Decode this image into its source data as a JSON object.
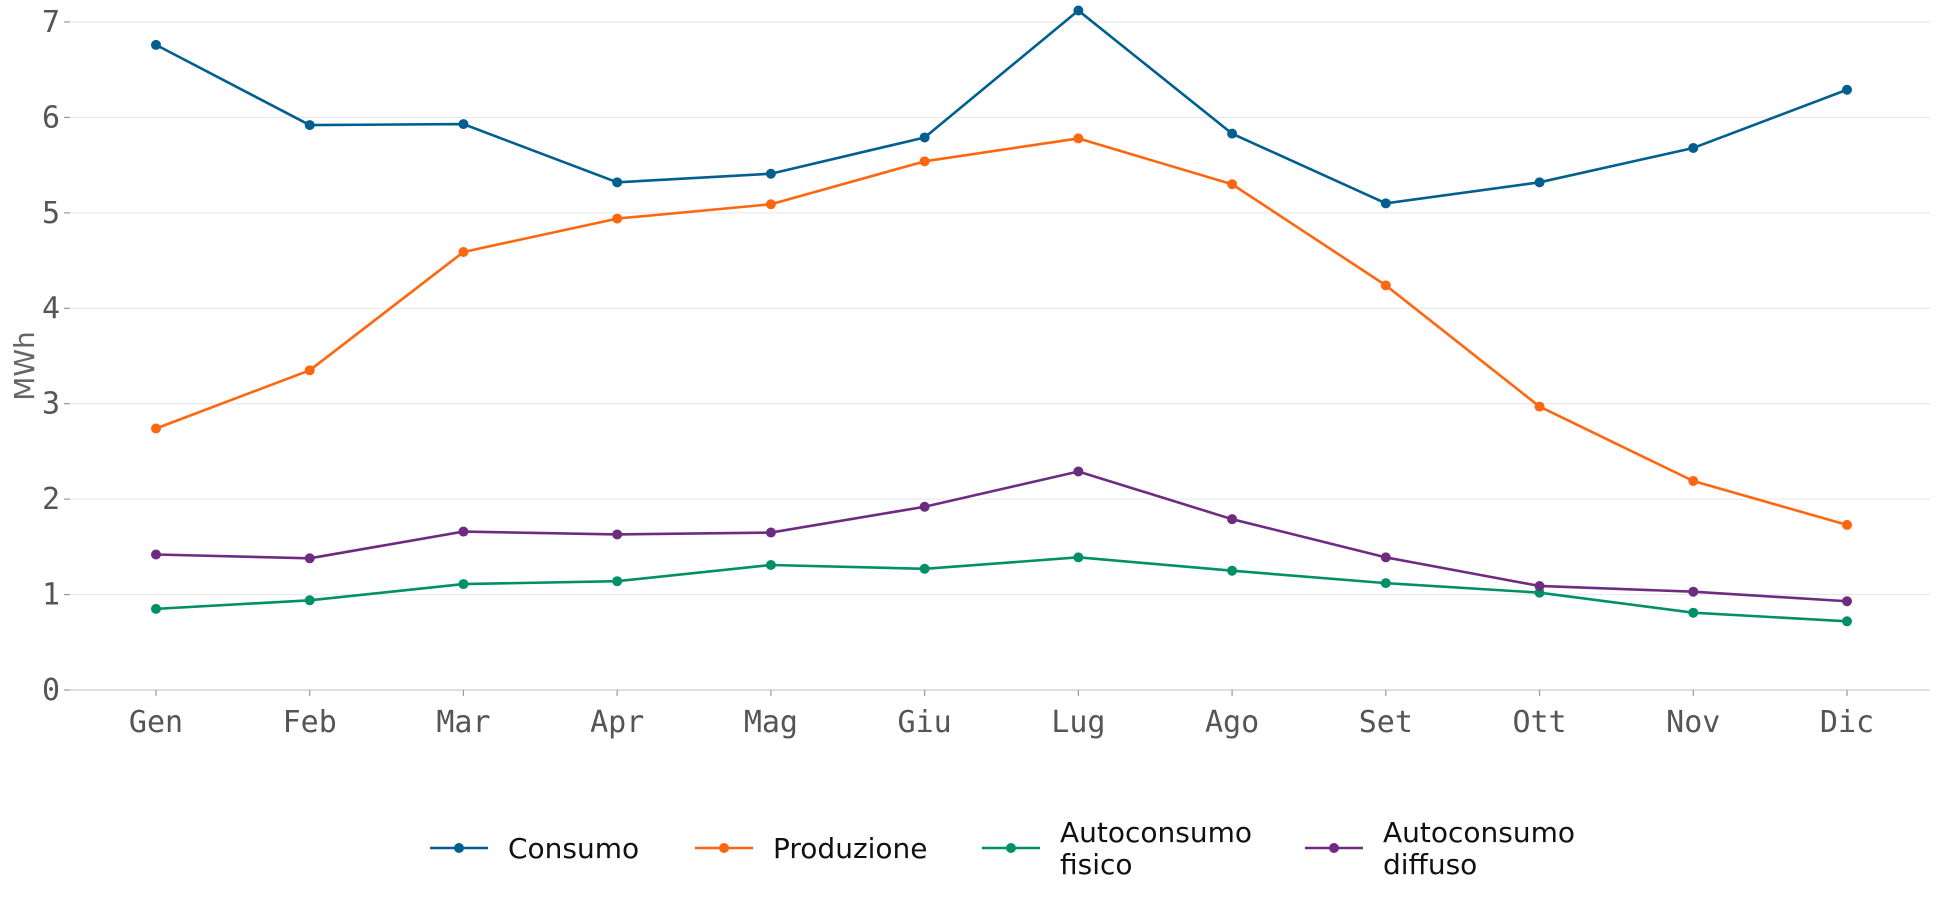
{
  "chart_data": {
    "type": "line",
    "categories": [
      "Gen",
      "Feb",
      "Mar",
      "Apr",
      "Mag",
      "Giu",
      "Lug",
      "Ago",
      "Set",
      "Ott",
      "Nov",
      "Dic"
    ],
    "ylabel": "MWh",
    "ylim": [
      0,
      7
    ],
    "yticks": [
      0,
      1,
      2,
      3,
      4,
      5,
      6,
      7
    ],
    "grid": true,
    "legend_position": "bottom",
    "series": [
      {
        "name": "Consumo",
        "color": "#005f8f",
        "values": [
          6.76,
          5.92,
          5.93,
          5.32,
          5.41,
          5.79,
          7.12,
          5.83,
          5.1,
          5.32,
          5.68,
          6.29
        ]
      },
      {
        "name": "Produzione",
        "color": "#ff6610",
        "values": [
          2.74,
          3.35,
          4.59,
          4.94,
          5.09,
          5.54,
          5.78,
          5.3,
          4.24,
          2.97,
          2.19,
          1.73
        ]
      },
      {
        "name": "Autoconsumo\nfisico",
        "color": "#009068",
        "values": [
          0.85,
          0.94,
          1.11,
          1.14,
          1.31,
          1.27,
          1.39,
          1.25,
          1.12,
          1.02,
          0.81,
          0.72
        ]
      },
      {
        "name": "Autoconsumo\ndiffuso",
        "color": "#6e2c80",
        "values": [
          1.42,
          1.38,
          1.66,
          1.63,
          1.65,
          1.92,
          2.29,
          1.79,
          1.39,
          1.09,
          1.03,
          0.93
        ]
      }
    ]
  }
}
